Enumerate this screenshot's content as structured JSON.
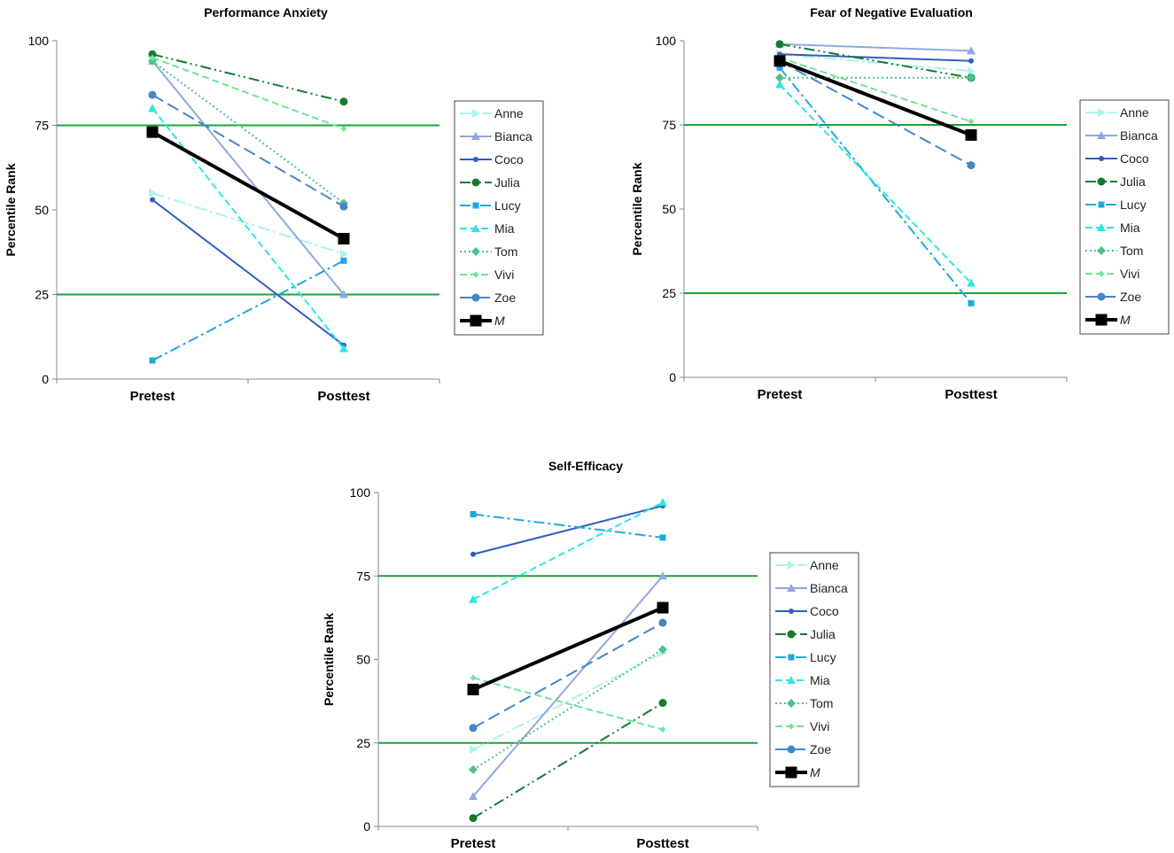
{
  "chart_data": [
    {
      "type": "line",
      "title": "Performance Anxiety",
      "categories": [
        "Pretest",
        "Posttest"
      ],
      "ylabel": "Percentile Rank",
      "ylim": [
        0,
        100
      ],
      "yticks": [
        "0",
        "25",
        "50",
        "75",
        "100"
      ],
      "reference_lines": [
        25,
        75
      ],
      "series": [
        {
          "name": "Anne",
          "values": [
            55,
            37
          ]
        },
        {
          "name": "Bianca",
          "values": [
            94,
            25
          ]
        },
        {
          "name": "Coco",
          "values": [
            53,
            10
          ]
        },
        {
          "name": "Julia",
          "values": [
            96,
            82
          ]
        },
        {
          "name": "Lucy",
          "values": [
            5.5,
            35
          ]
        },
        {
          "name": "Mia",
          "values": [
            80,
            9
          ]
        },
        {
          "name": "Tom",
          "values": [
            94,
            52
          ]
        },
        {
          "name": "Vivi",
          "values": [
            95,
            74
          ]
        },
        {
          "name": "Zoe",
          "values": [
            84,
            51
          ]
        },
        {
          "name": "M",
          "values": [
            73,
            41.5
          ]
        }
      ]
    },
    {
      "type": "line",
      "title": "Fear of Negative Evaluation",
      "categories": [
        "Pretest",
        "Posttest"
      ],
      "ylabel": "Percentile Rank",
      "ylim": [
        0,
        100
      ],
      "yticks": [
        "0",
        "25",
        "50",
        "75",
        "100"
      ],
      "reference_lines": [
        25,
        75
      ],
      "series": [
        {
          "name": "Anne",
          "values": [
            96,
            91
          ]
        },
        {
          "name": "Bianca",
          "values": [
            99,
            97
          ]
        },
        {
          "name": "Coco",
          "values": [
            96,
            94
          ]
        },
        {
          "name": "Julia",
          "values": [
            99,
            89
          ]
        },
        {
          "name": "Lucy",
          "values": [
            92,
            22
          ]
        },
        {
          "name": "Mia",
          "values": [
            87,
            28
          ]
        },
        {
          "name": "Tom",
          "values": [
            89,
            89
          ]
        },
        {
          "name": "Vivi",
          "values": [
            95,
            76
          ]
        },
        {
          "name": "Zoe",
          "values": [
            94,
            63
          ]
        },
        {
          "name": "M",
          "values": [
            94,
            72
          ]
        }
      ]
    },
    {
      "type": "line",
      "title": "Self-Efficacy",
      "categories": [
        "Pretest",
        "Posttest"
      ],
      "ylabel": "Percentile Rank",
      "ylim": [
        0,
        100
      ],
      "yticks": [
        "0",
        "25",
        "50",
        "75",
        "100"
      ],
      "reference_lines": [
        25,
        75
      ],
      "series": [
        {
          "name": "Anne",
          "values": [
            23,
            52
          ]
        },
        {
          "name": "Bianca",
          "values": [
            9,
            75
          ]
        },
        {
          "name": "Coco",
          "values": [
            81.5,
            96
          ]
        },
        {
          "name": "Julia",
          "values": [
            2.5,
            37
          ]
        },
        {
          "name": "Lucy",
          "values": [
            93.5,
            86.5
          ]
        },
        {
          "name": "Mia",
          "values": [
            68,
            97
          ]
        },
        {
          "name": "Tom",
          "values": [
            17,
            53
          ]
        },
        {
          "name": "Vivi",
          "values": [
            44.5,
            29
          ]
        },
        {
          "name": "Zoe",
          "values": [
            29.5,
            61
          ]
        },
        {
          "name": "M",
          "values": [
            41,
            65.5
          ]
        }
      ]
    }
  ],
  "series_styles": {
    "Anne": {
      "color": "#aef3ec",
      "dash": "14,4,3,4",
      "marker": "triangle-right",
      "width": 2
    },
    "Bianca": {
      "color": "#8fa8de",
      "dash": "",
      "marker": "triangle",
      "width": 2
    },
    "Coco": {
      "color": "#2f5ebf",
      "dash": "",
      "marker": "circle-small",
      "width": 2
    },
    "Julia": {
      "color": "#157a2e",
      "dash": "12,4,2,4,2,4",
      "marker": "circle",
      "width": 2
    },
    "Lucy": {
      "color": "#1fa8e0",
      "dash": "12,4,3,4",
      "marker": "square",
      "width": 2
    },
    "Mia": {
      "color": "#2ee6e0",
      "dash": "8,4",
      "marker": "triangle",
      "width": 2
    },
    "Tom": {
      "color": "#4cc18a",
      "dash": "2,3",
      "marker": "diamond",
      "width": 2
    },
    "Vivi": {
      "color": "#6ee59a",
      "dash": "8,4",
      "marker": "diamond-small",
      "width": 2
    },
    "Zoe": {
      "color": "#4486c9",
      "dash": "14,6",
      "marker": "circle",
      "width": 2
    },
    "M": {
      "color": "#000000",
      "dash": "",
      "marker": "square-big",
      "width": 4
    }
  },
  "reference_line_color": "#1aa33a"
}
